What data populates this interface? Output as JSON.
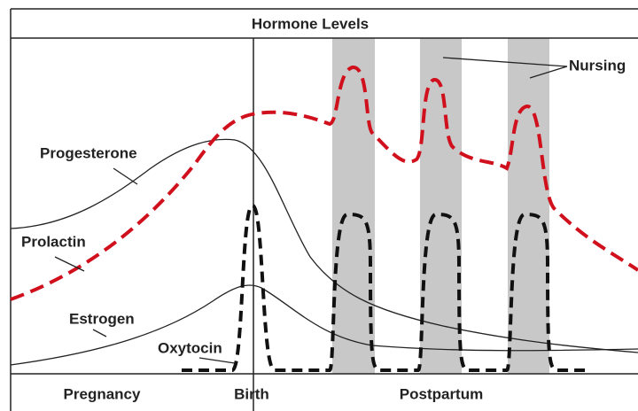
{
  "title": "Hormone Levels",
  "curves": {
    "progesterone": "Progesterone",
    "prolactin": "Prolactin",
    "estrogen": "Estrogen",
    "oxytocin": "Oxytocin"
  },
  "annotation": "Nursing",
  "phases": [
    "Pregnancy",
    "Birth",
    "Postpartum"
  ]
}
